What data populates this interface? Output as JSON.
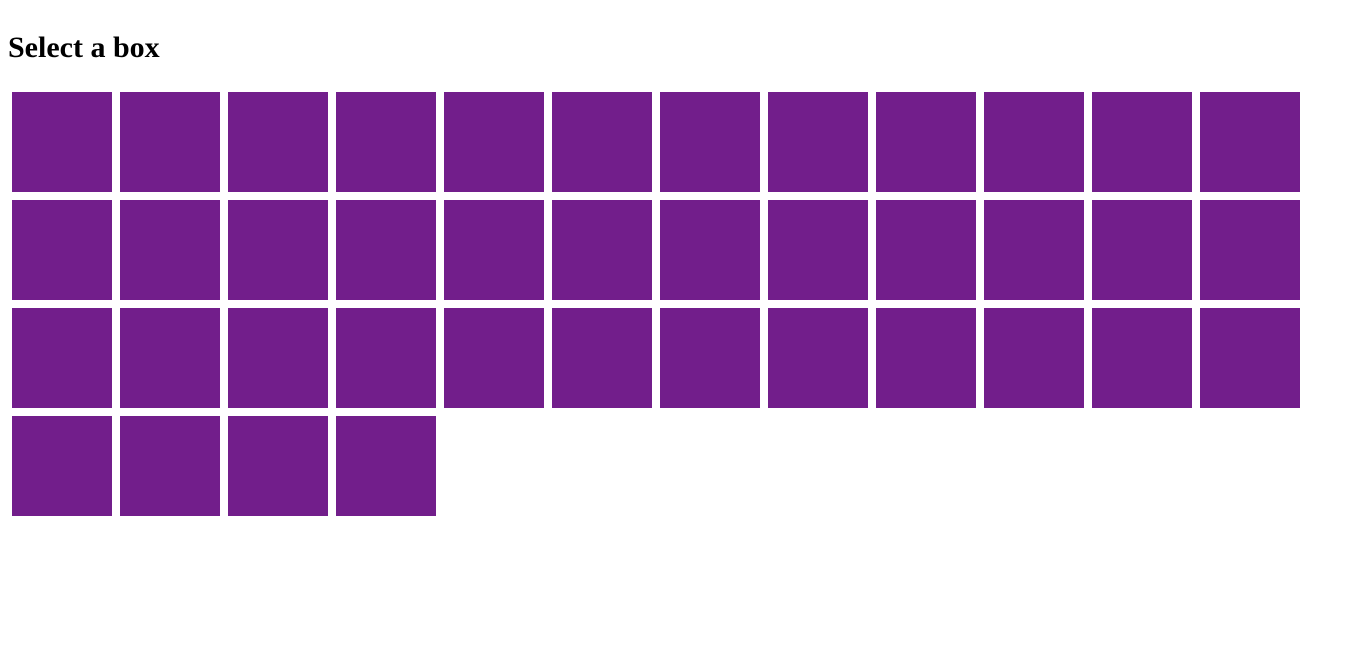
{
  "page": {
    "title": "Select a box"
  },
  "grid": {
    "box_count": 40,
    "box_color": "#721e8b"
  }
}
